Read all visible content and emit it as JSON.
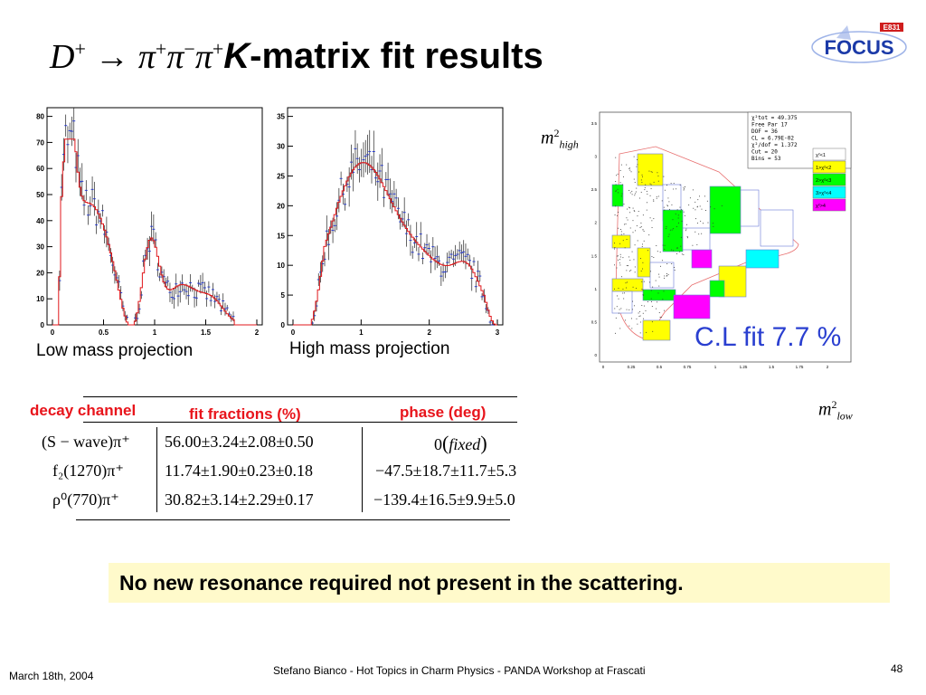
{
  "title": {
    "d": "D",
    "d_sup": "+",
    "arrow": "→",
    "pi1": "π",
    "pi1_sup": "+",
    "pi2": "π",
    "pi2_sup": "−",
    "pi3": "π",
    "pi3_sup": "+",
    "k": "K",
    "rest": "-matrix fit results"
  },
  "logo": {
    "text": "FOCUS",
    "badge": "E831"
  },
  "low_plot": {
    "caption": "Low mass  projection",
    "yticks": [
      "0",
      "10",
      "20",
      "30",
      "40",
      "50",
      "60",
      "70",
      "80"
    ],
    "xticks": [
      "0",
      "0.5",
      "1",
      "1.5",
      "2"
    ]
  },
  "high_plot": {
    "caption": "High mass  projection",
    "yticks": [
      "0",
      "5",
      "10",
      "15",
      "20",
      "25",
      "30",
      "35"
    ],
    "xticks": [
      "0",
      "1",
      "2",
      "3"
    ]
  },
  "dalitz": {
    "stats": [
      "χ²tot    =  49.375",
      "Free Par  17",
      "DOF     =  36",
      "CL      =  6.79E-02",
      "χ²/dof  =   1.372",
      "Cut     =  20",
      "Bins    =  53"
    ],
    "legend": [
      "χ²<1",
      "1>χ²<2",
      "2>χ²<3",
      "3>χ²<4",
      "χ²>4"
    ],
    "legend_colors": [
      "#ffffff",
      "#ffff00",
      "#00ff00",
      "#00ffff",
      "#ff00ff"
    ],
    "yticks": [
      "0",
      "0.5",
      "1",
      "1.5",
      "2",
      "2.5",
      "3",
      "3.5"
    ],
    "xticks": [
      "0",
      "0.25",
      "0.5",
      "0.75",
      "1",
      "1.25",
      "1.5",
      "1.75",
      "2"
    ],
    "ylabel_m": "m",
    "ylabel_sup": "2",
    "ylabel_sub": "high",
    "xlabel_m": "m",
    "xlabel_sup": "2",
    "xlabel_sub": "low"
  },
  "cl_text": "C.L fit 7.7 %",
  "table": {
    "headers": {
      "channel": "decay channel",
      "fractions": "fit fractions (%)",
      "phase": "phase (deg)"
    },
    "rows": [
      {
        "channel": "(S − wave)π⁺",
        "fraction": "56.00±3.24±2.08±0.50",
        "phase_val": "0",
        "phase_note": "fixed"
      },
      {
        "channel": "f₂(1270)π⁺",
        "fraction": "11.74±1.90±0.23±0.18",
        "phase_val": "−47.5±18.7±11.7±5.3",
        "phase_note": ""
      },
      {
        "channel": "ρ⁰(770)π⁺",
        "fraction": "30.82±3.14±2.29±0.17",
        "phase_val": "−139.4±16.5±9.9±5.0",
        "phase_note": ""
      }
    ]
  },
  "conclusion": "No new resonance  required not present in the  scattering.",
  "footer": {
    "date": "March 18th, 2004",
    "credit": "Stefano Bianco - Hot Topics in Charm Physics - PANDA Workshop at Frascati",
    "page": "48"
  }
}
